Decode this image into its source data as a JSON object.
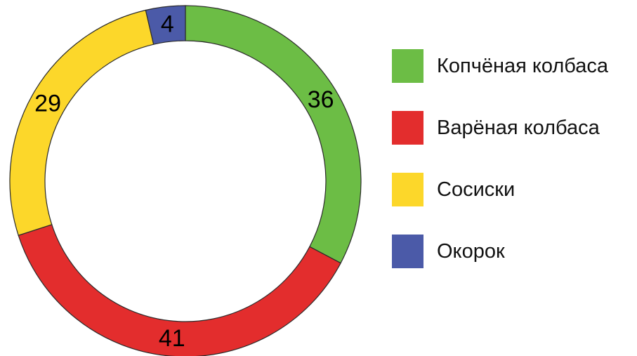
{
  "chart_data": {
    "type": "pie",
    "donut": true,
    "title": "",
    "start_angle": "12 o'clock",
    "direction": "clockwise",
    "slices": [
      {
        "label": "Копчёная колбаса",
        "value": 36,
        "color": "#6cbd45"
      },
      {
        "label": "Варёная колбаса",
        "value": 41,
        "color": "#e32d2d"
      },
      {
        "label": "Сосиски",
        "value": 29,
        "color": "#fcd72a"
      },
      {
        "label": "Окорок",
        "value": 4,
        "color": "#4b5aa8"
      }
    ],
    "legend": {
      "placement": "right",
      "items": [
        "Копчёная колбаса",
        "Варёная колбаса",
        "Сосиски",
        "Окорок"
      ]
    }
  }
}
